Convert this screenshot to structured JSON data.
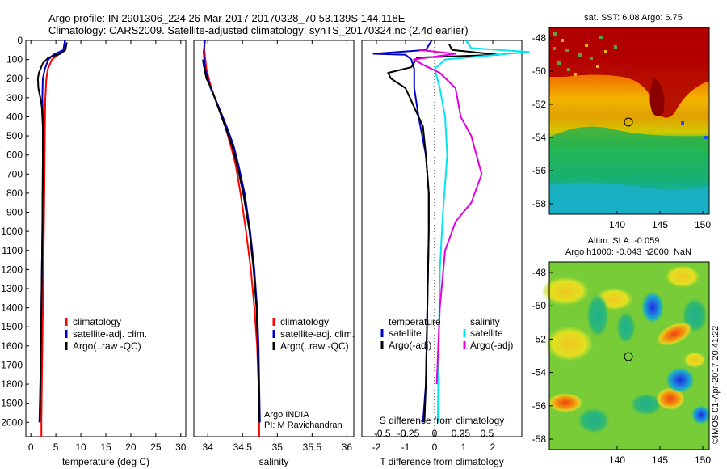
{
  "header": {
    "line1": "Argo profile: IN 2901306_224 26-Mar-2017 20170328_70 53.139S 144.118E",
    "line2": "Climatology: CARS2009. Satellite-adjusted climatology: synTS_20170324.nc (2.4d earlier)"
  },
  "colors": {
    "climatology": "#ff0000",
    "satellite": "#0000cc",
    "argo": "#000000",
    "sal_satellite": "#00e5ee",
    "sal_argo": "#e000e0"
  },
  "chart_data": [
    {
      "id": "temperature",
      "type": "line",
      "xlabel": "temperature (deg C)",
      "ylabel": "",
      "xlim": [
        -1,
        31
      ],
      "ylim": [
        2075,
        0
      ],
      "xticks": [
        0,
        5,
        10,
        15,
        20,
        25,
        30
      ],
      "yticks": [
        0,
        100,
        200,
        300,
        400,
        500,
        600,
        700,
        800,
        900,
        1000,
        1100,
        1200,
        1300,
        1400,
        1500,
        1600,
        1700,
        1800,
        1900,
        2000
      ],
      "legend": [
        "climatology",
        "satellite-adj. clim.",
        "Argo(..raw -QC)"
      ],
      "legend_position": "lower-right",
      "series": [
        {
          "name": "climatology",
          "color": "#ff0000",
          "points": [
            [
              6.9,
              0
            ],
            [
              6.6,
              50
            ],
            [
              5.5,
              75
            ],
            [
              4.2,
              100
            ],
            [
              3.4,
              150
            ],
            [
              3.1,
              200
            ],
            [
              2.9,
              300
            ],
            [
              2.8,
              500
            ],
            [
              2.7,
              800
            ],
            [
              2.5,
              1200
            ],
            [
              2.3,
              1600
            ],
            [
              2.1,
              2000
            ],
            [
              2.1,
              2075
            ]
          ]
        },
        {
          "name": "satellite-adj. clim.",
          "color": "#0000cc",
          "points": [
            [
              6.8,
              0
            ],
            [
              6.5,
              50
            ],
            [
              4.5,
              75
            ],
            [
              3.5,
              100
            ],
            [
              2.8,
              150
            ],
            [
              2.4,
              200
            ],
            [
              2.3,
              300
            ],
            [
              2.4,
              400
            ],
            [
              2.4,
              600
            ],
            [
              2.3,
              1000
            ],
            [
              2.1,
              1400
            ],
            [
              1.9,
              1800
            ],
            [
              1.7,
              2000
            ]
          ]
        },
        {
          "name": "Argo(..raw -QC)",
          "color": "#000000",
          "points": [
            [
              7.2,
              10
            ],
            [
              6.9,
              50
            ],
            [
              5.9,
              70
            ],
            [
              3.5,
              90
            ],
            [
              2.4,
              120
            ],
            [
              1.6,
              170
            ],
            [
              1.4,
              200
            ],
            [
              1.5,
              250
            ],
            [
              1.9,
              300
            ],
            [
              2.2,
              350
            ],
            [
              2.4,
              450
            ],
            [
              2.4,
              700
            ],
            [
              2.3,
              1000
            ],
            [
              2.1,
              1400
            ],
            [
              1.9,
              1800
            ],
            [
              1.8,
              2000
            ]
          ]
        }
      ]
    },
    {
      "id": "salinity",
      "type": "line",
      "xlabel": "salinity",
      "ylabel": "",
      "xlim": [
        33.8,
        36.1
      ],
      "ylim": [
        2075,
        0
      ],
      "xticks": [
        34,
        34.5,
        35,
        35.5,
        36
      ],
      "legend": [
        "climatology",
        "satellite-adj. clim.",
        "Argo(..raw -QC)"
      ],
      "legend_position": "lower-right",
      "annotation": {
        "line1": "Argo INDIA",
        "line2": "PI: M Ravichandran"
      },
      "series": [
        {
          "name": "climatology",
          "color": "#ff0000",
          "points": [
            [
              33.95,
              0
            ],
            [
              33.95,
              50
            ],
            [
              33.98,
              150
            ],
            [
              34.05,
              250
            ],
            [
              34.15,
              350
            ],
            [
              34.25,
              450
            ],
            [
              34.33,
              550
            ],
            [
              34.4,
              650
            ],
            [
              34.47,
              800
            ],
            [
              34.55,
              1000
            ],
            [
              34.62,
              1200
            ],
            [
              34.67,
              1400
            ],
            [
              34.71,
              1600
            ],
            [
              34.73,
              1800
            ],
            [
              34.74,
              2000
            ],
            [
              34.74,
              2075
            ]
          ]
        },
        {
          "name": "satellite-adj. clim.",
          "color": "#0000cc",
          "points": [
            [
              33.96,
              0
            ],
            [
              33.94,
              60
            ],
            [
              33.96,
              150
            ],
            [
              34.04,
              250
            ],
            [
              34.16,
              350
            ],
            [
              34.27,
              450
            ],
            [
              34.37,
              550
            ],
            [
              34.44,
              650
            ],
            [
              34.53,
              800
            ],
            [
              34.61,
              1000
            ],
            [
              34.67,
              1200
            ],
            [
              34.71,
              1400
            ],
            [
              34.73,
              1600
            ],
            [
              34.74,
              1800
            ],
            [
              34.75,
              2000
            ]
          ]
        },
        {
          "name": "Argo(..raw -QC)",
          "color": "#000000",
          "points": [
            [
              33.93,
              100
            ],
            [
              33.94,
              130
            ],
            [
              33.98,
              200
            ],
            [
              34.05,
              250
            ],
            [
              34.15,
              350
            ],
            [
              34.25,
              450
            ],
            [
              34.35,
              550
            ],
            [
              34.42,
              650
            ],
            [
              34.51,
              800
            ],
            [
              34.6,
              1000
            ],
            [
              34.66,
              1200
            ],
            [
              34.7,
              1400
            ],
            [
              34.72,
              1600
            ],
            [
              34.73,
              1800
            ],
            [
              34.74,
              2000
            ]
          ]
        }
      ]
    },
    {
      "id": "difference",
      "type": "line",
      "xlabel": "T difference from climatology",
      "x2label": "S difference from climatology",
      "ylabel": "",
      "xlim": [
        -2.5,
        3.0
      ],
      "ylim": [
        2075,
        0
      ],
      "xticks": [
        -2,
        -1,
        0,
        1,
        2
      ],
      "x2ticks": [
        -0.5,
        -0.25,
        0,
        0.25,
        0.5
      ],
      "legend_left": {
        "title": "temperature",
        "items": [
          "satellite",
          "Argo(-adj)"
        ]
      },
      "legend_right": {
        "title": "salinity",
        "items": [
          "satellite",
          "Argo(-adj)"
        ]
      },
      "series": [
        {
          "name": "temperature satellite",
          "color": "#0000cc",
          "points": [
            [
              -0.1,
              0
            ],
            [
              -0.3,
              50
            ],
            [
              -2.1,
              70
            ],
            [
              -1.0,
              75
            ],
            [
              -0.8,
              100
            ],
            [
              -0.7,
              150
            ],
            [
              -0.7,
              250
            ],
            [
              -0.55,
              400
            ],
            [
              -0.3,
              600
            ],
            [
              -0.2,
              800
            ],
            [
              -0.2,
              1000
            ],
            [
              -0.25,
              1400
            ],
            [
              -0.3,
              1800
            ],
            [
              -0.4,
              2000
            ]
          ]
        },
        {
          "name": "temperature Argo(-adj)",
          "color": "#000000",
          "points": [
            [
              0.5,
              20
            ],
            [
              0.6,
              50
            ],
            [
              2.2,
              75
            ],
            [
              -0.6,
              90
            ],
            [
              -0.8,
              140
            ],
            [
              -1.6,
              170
            ],
            [
              -1.5,
              200
            ],
            [
              -1.0,
              250
            ],
            [
              -0.7,
              350
            ],
            [
              -0.4,
              450
            ],
            [
              -0.3,
              600
            ],
            [
              -0.2,
              800
            ],
            [
              -0.2,
              1000
            ],
            [
              -0.25,
              1400
            ],
            [
              -0.3,
              1800
            ],
            [
              -0.35,
              2000
            ]
          ]
        },
        {
          "name": "salinity satellite",
          "color": "#00e5ee",
          "points": [
            [
              0.3,
              0
            ],
            [
              0.35,
              40
            ],
            [
              0.9,
              60
            ],
            [
              0.1,
              100
            ],
            [
              0.0,
              150
            ],
            [
              0.05,
              250
            ],
            [
              0.1,
              400
            ],
            [
              0.12,
              600
            ],
            [
              0.08,
              900
            ],
            [
              0.05,
              1200
            ],
            [
              0.04,
              1600
            ],
            [
              0.03,
              2000
            ]
          ]
        },
        {
          "name": "salinity Argo(-adj)",
          "color": "#e000e0",
          "points": [
            [
              -0.15,
              50
            ],
            [
              0.2,
              70
            ],
            [
              -0.2,
              100
            ],
            [
              -0.1,
              130
            ],
            [
              0.05,
              170
            ],
            [
              0.2,
              250
            ],
            [
              0.25,
              400
            ],
            [
              0.35,
              500
            ],
            [
              0.45,
              700
            ],
            [
              0.35,
              850
            ],
            [
              0.2,
              950
            ],
            [
              0.1,
              1100
            ],
            [
              0.05,
              1400
            ],
            [
              0.02,
              1800
            ]
          ]
        }
      ]
    }
  ],
  "maps": [
    {
      "id": "sst-map",
      "title": "sat. SST: 6.08 Argo: 6.75",
      "xticks": [
        "140",
        "145",
        "150"
      ],
      "yticks": [
        "-48",
        "-50",
        "-52",
        "-54",
        "-56",
        "-58"
      ]
    },
    {
      "id": "sla-map",
      "title_line1": "Altim. SLA: -0.059",
      "title_line2": "Argo h1000: -0.043 h2000: NaN",
      "xticks": [
        "140",
        "145",
        "150"
      ],
      "yticks": [
        "-48",
        "-50",
        "-52",
        "-54",
        "-56",
        "-58"
      ]
    }
  ],
  "footer_vertical": "©IMOS 01-Apr-2017 20:41:22"
}
